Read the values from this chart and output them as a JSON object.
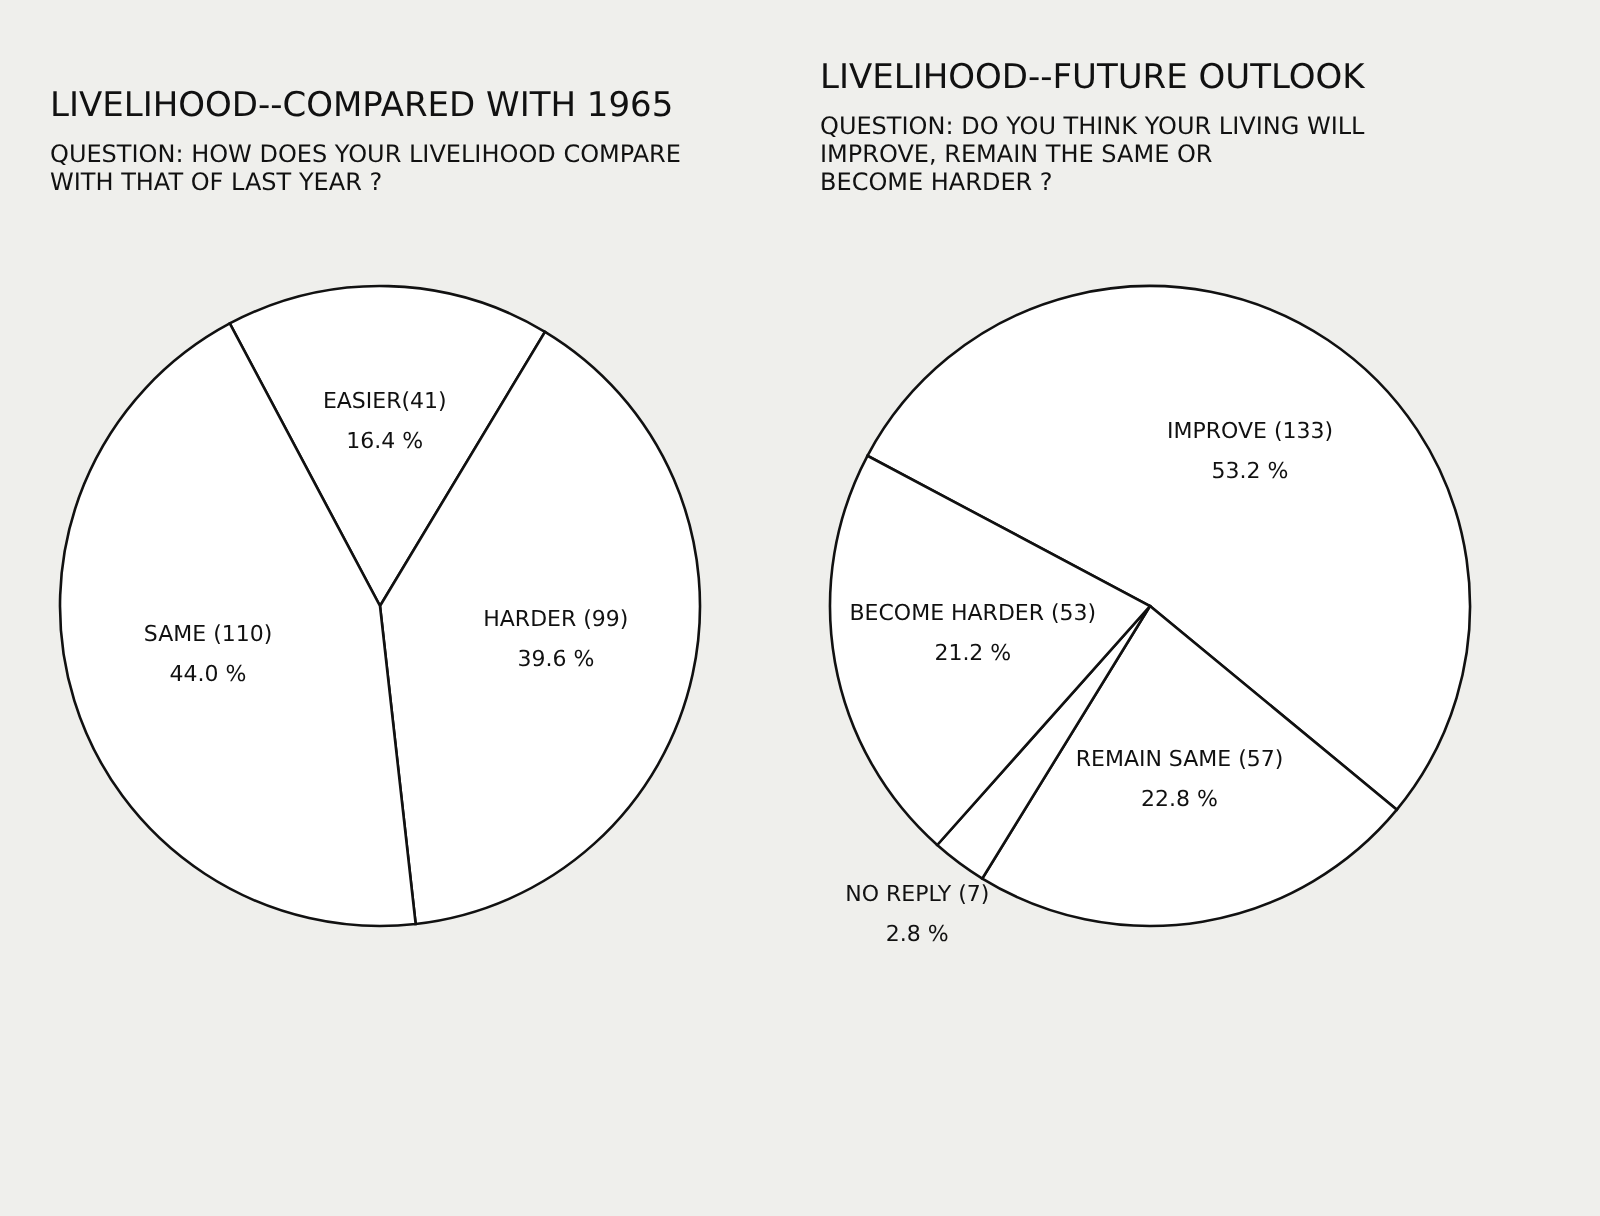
{
  "chart_data": [
    {
      "type": "pie",
      "title": "LIVELIHOOD--COMPARED WITH 1965",
      "subtitle": "QUESTION: HOW DOES YOUR LIVELIHOOD COMPARE\nWITH THAT OF LAST YEAR ?",
      "categories": [
        "EASIER(41)",
        "HARDER (99)",
        "SAME (110)"
      ],
      "values": [
        16.4,
        39.6,
        44.0
      ],
      "value_labels": [
        "16.4 %",
        "39.6 %",
        "44.0 %"
      ],
      "colors": [
        "#ffffff",
        "#ffffff",
        "#ffffff"
      ],
      "legend": false
    },
    {
      "type": "pie",
      "title": "LIVELIHOOD--FUTURE OUTLOOK",
      "subtitle": "QUESTION: DO YOU THINK YOUR LIVING WILL\nIMPROVE, REMAIN THE SAME OR\nBECOME HARDER ?",
      "categories": [
        "IMPROVE (133)",
        "REMAIN SAME (57)",
        "NO REPLY (7)",
        "BECOME HARDER (53)"
      ],
      "values": [
        53.2,
        22.8,
        2.8,
        21.2
      ],
      "value_labels": [
        "53.2 %",
        "22.8 %",
        "2.8 %",
        "21.2 %"
      ],
      "colors": [
        "#ffffff",
        "#ffffff",
        "#ffffff",
        "#ffffff"
      ],
      "legend": false
    }
  ]
}
